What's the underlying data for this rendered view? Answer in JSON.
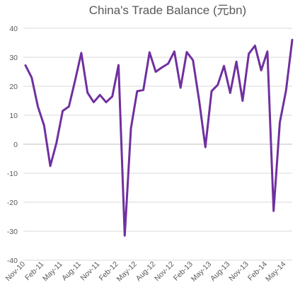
{
  "chart_data": {
    "type": "line",
    "title": "China's Trade Balance (元bn)",
    "xlabel": "",
    "ylabel": "",
    "ylim": [
      -40,
      40
    ],
    "y_ticks": [
      -40,
      -30,
      -20,
      -10,
      0,
      10,
      20,
      30,
      40
    ],
    "x_tick_labels": [
      "Nov-10",
      "Feb-11",
      "May-11",
      "Aug-11",
      "Nov-11",
      "Feb-12",
      "May-12",
      "Aug-12",
      "Nov-12",
      "Feb-13",
      "May-13",
      "Aug-13",
      "Nov-13",
      "Feb-14",
      "May-14"
    ],
    "x": [
      "Nov-10",
      "Dec-10",
      "Jan-11",
      "Feb-11",
      "Mar-11",
      "Apr-11",
      "May-11",
      "Jun-11",
      "Jul-11",
      "Aug-11",
      "Sep-11",
      "Oct-11",
      "Nov-11",
      "Dec-11",
      "Jan-12",
      "Feb-12",
      "Mar-12",
      "Apr-12",
      "May-12",
      "Jun-12",
      "Jul-12",
      "Aug-12",
      "Sep-12",
      "Oct-12",
      "Nov-12",
      "Dec-12",
      "Jan-13",
      "Feb-13",
      "Mar-13",
      "Apr-13",
      "May-13",
      "Jun-13",
      "Jul-13",
      "Aug-13",
      "Sep-13",
      "Oct-13",
      "Nov-13",
      "Dec-13",
      "Jan-14",
      "Feb-14",
      "Mar-14",
      "Apr-14",
      "May-14",
      "Jun-14"
    ],
    "series": [
      {
        "color": "#7030a0",
        "values": [
          27.2,
          23.0,
          13.0,
          6.5,
          -7.5,
          0.5,
          11.5,
          13.0,
          22.0,
          31.5,
          17.8,
          14.5,
          17.0,
          14.5,
          16.5,
          27.3,
          -31.5,
          5.5,
          18.3,
          18.7,
          31.7,
          25.0,
          26.5,
          27.8,
          32.0,
          19.5,
          31.8,
          29.0,
          15.0,
          -1.0,
          18.3,
          20.5,
          27.0,
          17.7,
          28.5,
          15.0,
          31.2,
          34.0,
          25.5,
          32.0,
          -23.0,
          7.5,
          18.5,
          36.0
        ]
      }
    ],
    "grid": true
  }
}
